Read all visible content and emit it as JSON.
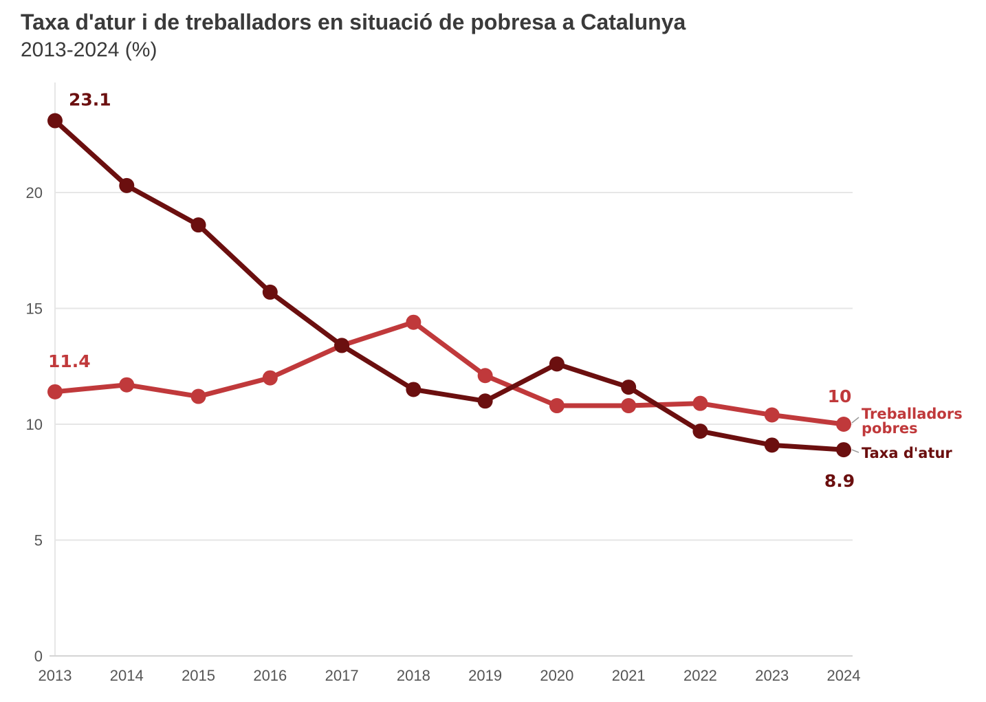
{
  "chart_data": {
    "type": "line",
    "title": "Taxa d'atur i de treballadors en situació de pobresa a Catalunya",
    "subtitle": "2013-2024 (%)",
    "x": [
      "2013",
      "2014",
      "2015",
      "2016",
      "2017",
      "2018",
      "2019",
      "2020",
      "2021",
      "2022",
      "2023",
      "2024"
    ],
    "y_ticks": [
      0,
      5,
      10,
      15,
      20
    ],
    "ylim": [
      0,
      24
    ],
    "grid": true,
    "series": [
      {
        "name": "Taxa d'atur",
        "color": "#6b0f0f",
        "values": [
          23.1,
          20.3,
          18.6,
          15.7,
          13.4,
          11.5,
          11.0,
          12.6,
          11.6,
          9.7,
          9.1,
          8.9
        ],
        "labels": [
          {
            "index": 0,
            "text": "23.1"
          },
          {
            "index": 11,
            "text": "8.9"
          }
        ]
      },
      {
        "name": "Treballadors pobres",
        "name_lines": [
          "Treballadors",
          "pobres"
        ],
        "color": "#c0393b",
        "values": [
          11.4,
          11.7,
          11.2,
          12.0,
          13.4,
          14.4,
          12.1,
          10.8,
          10.8,
          10.9,
          10.4,
          10.0
        ],
        "labels": [
          {
            "index": 0,
            "text": "11.4"
          },
          {
            "index": 11,
            "text": "10"
          }
        ]
      }
    ]
  }
}
